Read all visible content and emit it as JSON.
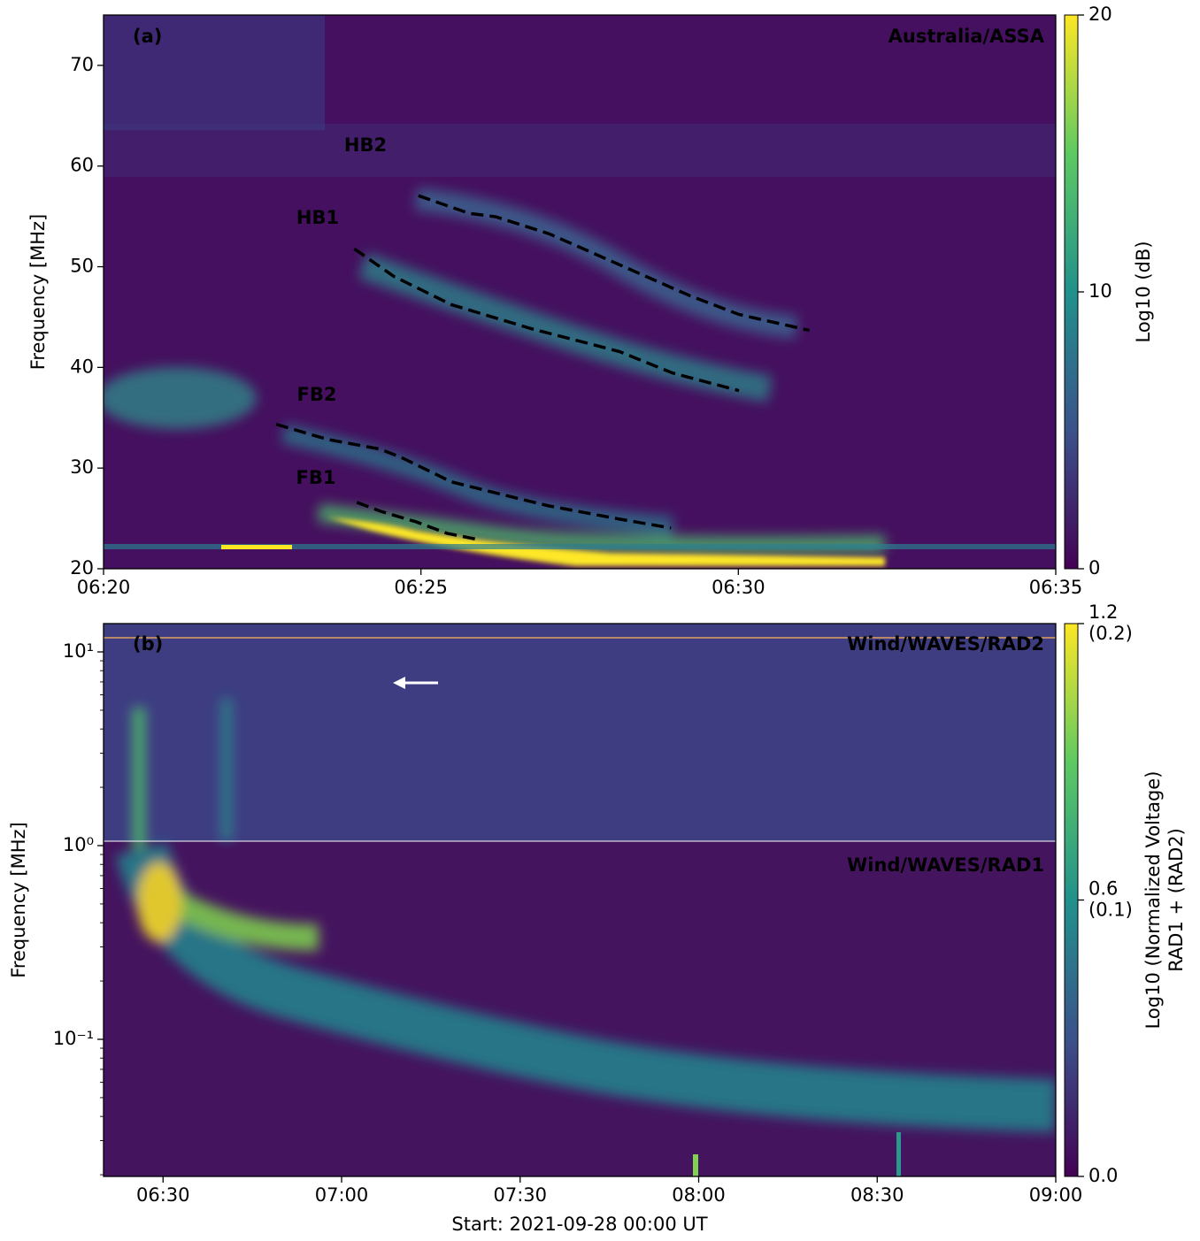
{
  "chart_data": [
    {
      "type": "spectrogram",
      "ylabel": "Frequency [MHz]",
      "xlim": [
        380,
        395
      ],
      "xticks": [
        {
          "value": 380,
          "label": "06:20"
        },
        {
          "value": 385,
          "label": "06:25"
        },
        {
          "value": 390,
          "label": "06:30"
        },
        {
          "value": 395,
          "label": "06:35"
        }
      ],
      "ylim": [
        20,
        75
      ],
      "yticks": [
        20,
        30,
        40,
        50,
        60,
        70
      ],
      "log_y": false,
      "annotations": [
        {
          "text": "(a)",
          "color": "#ffffff"
        },
        {
          "text": "Australia/ASSA",
          "color": "#ffffff"
        },
        {
          "text": "HB2",
          "color": "#dcb4ae"
        },
        {
          "text": "HB1",
          "color": "#8e9fc6"
        },
        {
          "text": "FB2",
          "color": "#ff4a12"
        },
        {
          "text": "FB1",
          "color": "#19e6f0"
        }
      ],
      "series": [
        {
          "color": "#000000",
          "x": [
            384.96,
            385.76,
            386.18,
            387.02,
            388.13,
            389.24,
            390.01,
            391.12
          ],
          "values": [
            57.06,
            55.3,
            54.96,
            53.27,
            50.19,
            47.11,
            45.26,
            43.68
          ]
        },
        {
          "color": "#000000",
          "x": [
            383.95,
            384.57,
            385.48,
            386.73,
            388.13,
            388.96,
            390.01
          ],
          "values": [
            51.78,
            49.05,
            46.23,
            43.86,
            41.57,
            39.45,
            37.69
          ]
        },
        {
          "color": "#000000",
          "x": [
            382.72,
            383.53,
            384.36,
            384.71,
            385.48,
            386.32,
            387.01,
            388.13,
            388.94
          ],
          "values": [
            34.35,
            32.85,
            31.88,
            31.0,
            28.63,
            27.31,
            26.25,
            24.93,
            24.05
          ]
        },
        {
          "color": "#000000",
          "x": [
            383.99,
            384.36,
            384.92,
            385.41,
            385.9
          ],
          "values": [
            26.6,
            25.72,
            24.67,
            23.52,
            22.9
          ]
        }
      ],
      "colorbar": {
        "label": [
          "Log10 (dB)"
        ],
        "lim": [
          0,
          20
        ],
        "ticks": [
          0,
          10,
          20
        ]
      }
    },
    {
      "type": "spectrogram",
      "ylabel": "Frequency [MHz]",
      "xlabel": "Start: 2021-09-28 00:00 UT",
      "xlim": [
        380,
        540
      ],
      "xticks": [
        {
          "value": 390,
          "label": "06:30"
        },
        {
          "value": 420,
          "label": "07:00"
        },
        {
          "value": 450,
          "label": "07:30"
        },
        {
          "value": 480,
          "label": "08:00"
        },
        {
          "value": 510,
          "label": "08:30"
        },
        {
          "value": 540,
          "label": "09:00"
        }
      ],
      "ylim": [
        0.0196,
        14
      ],
      "yticks": [
        {
          "value": 0.1,
          "label": "10⁻¹"
        },
        {
          "value": 1,
          "label": "10⁰"
        },
        {
          "value": 10,
          "label": "10¹"
        }
      ],
      "log_y": true,
      "annotations": [
        {
          "text": "(b)",
          "color": "#ffffff"
        },
        {
          "text": "Wind/WAVES/RAD2",
          "color": "#ffffff"
        },
        {
          "text": "Wind/WAVES/RAD1",
          "color": "#ffffff"
        }
      ],
      "series": [],
      "colorbar": {
        "label": [
          "Log10 (Normalized Voltage)",
          "RAD1 + (RAD2)"
        ],
        "lim": [
          0.0,
          1.2
        ],
        "ticks": [
          {
            "value": 0.0,
            "label": "0.0"
          },
          {
            "value": 0.6,
            "label": "0.6\n(0.1)"
          },
          {
            "value": 1.2,
            "label": "1.2\n(0.2)"
          }
        ]
      }
    }
  ]
}
